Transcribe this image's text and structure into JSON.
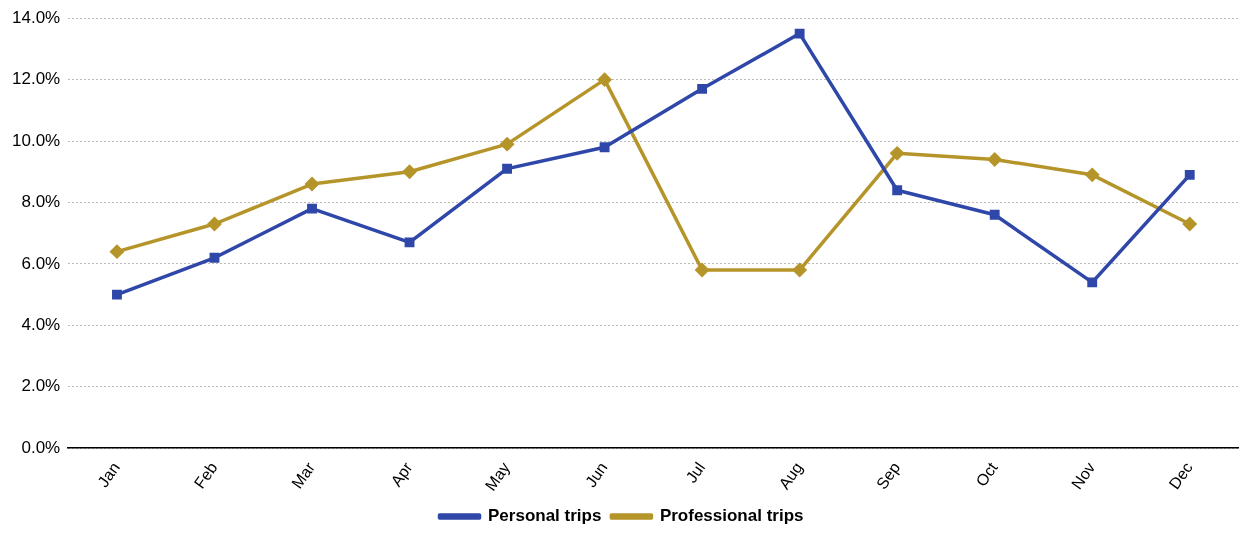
{
  "chart_data": {
    "type": "line",
    "categories": [
      "Jan",
      "Feb",
      "Mar",
      "Apr",
      "May",
      "Jun",
      "Jul",
      "Aug",
      "Sep",
      "Oct",
      "Nov",
      "Dec"
    ],
    "series": [
      {
        "name": "Personal trips",
        "color": "#2f47a8",
        "marker": "square",
        "values": [
          5.0,
          6.2,
          7.8,
          6.7,
          9.1,
          9.8,
          11.7,
          13.5,
          8.4,
          7.6,
          5.4,
          8.9
        ]
      },
      {
        "name": "Professional trips",
        "color": "#b5952a",
        "marker": "diamond",
        "values": [
          6.4,
          7.3,
          8.6,
          9.0,
          9.9,
          12.0,
          5.8,
          5.8,
          9.6,
          9.4,
          8.9,
          7.3
        ]
      }
    ],
    "ylim": [
      0,
      14
    ],
    "yticks": [
      {
        "value": 0,
        "label": "0.0%"
      },
      {
        "value": 2,
        "label": "2.0%"
      },
      {
        "value": 4,
        "label": "4.0%"
      },
      {
        "value": 6,
        "label": "6.0%"
      },
      {
        "value": 8,
        "label": "8.0%"
      },
      {
        "value": 10,
        "label": "10.0%"
      },
      {
        "value": 12,
        "label": "12.0%"
      },
      {
        "value": 14,
        "label": "14.0%"
      }
    ],
    "grid": "y",
    "legend": "bottom",
    "line_style": "solid"
  }
}
